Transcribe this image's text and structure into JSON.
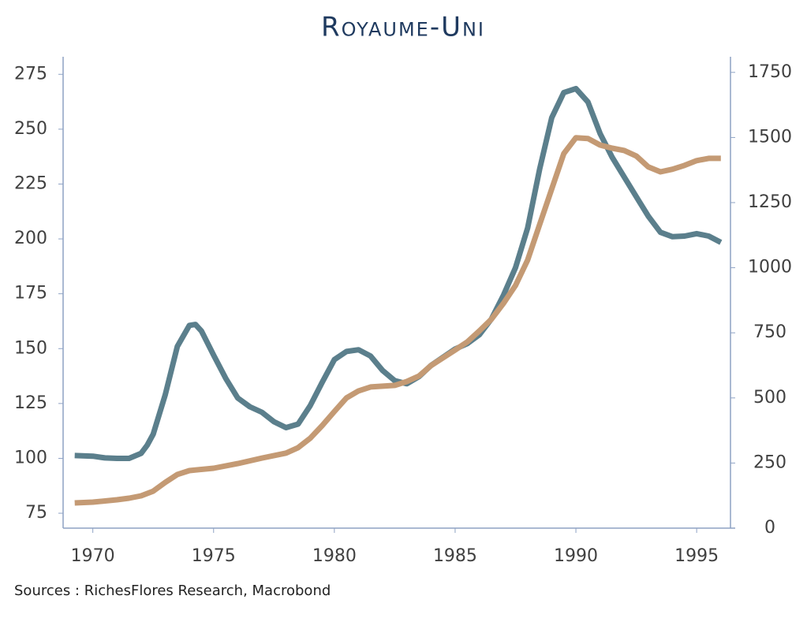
{
  "chart_data": {
    "type": "line",
    "title": "Royaume-Uni",
    "source": "Sources : RichesFlores Research, Macrobond",
    "xlim": [
      1968.77,
      1996.4
    ],
    "xticks": [
      1970,
      1975,
      1980,
      1985,
      1990,
      1995
    ],
    "ylim": [
      68.2,
      283
    ],
    "yticks": [
      75,
      100,
      125,
      150,
      175,
      200,
      225,
      250,
      275
    ],
    "y2lim": [
      0,
      1810
    ],
    "y2ticks": [
      0,
      250,
      500,
      750,
      1000,
      1250,
      1500,
      1750
    ],
    "series": [
      {
        "color": "#5b7f8c",
        "axis": "y",
        "x": [
          1969.25,
          1970,
          1970.5,
          1971,
          1971.5,
          1972,
          1972.25,
          1972.5,
          1973,
          1973.5,
          1974,
          1974.25,
          1974.5,
          1975,
          1975.5,
          1976,
          1976.5,
          1977,
          1977.5,
          1978,
          1978.5,
          1979,
          1979.5,
          1980,
          1980.5,
          1981,
          1981.5,
          1982,
          1982.5,
          1983,
          1983.5,
          1984,
          1985,
          1985.5,
          1986,
          1986.5,
          1987,
          1987.5,
          1988,
          1988.5,
          1989,
          1989.5,
          1990,
          1990.5,
          1991,
          1991.5,
          1992,
          1992.5,
          1993,
          1993.5,
          1994,
          1994.5,
          1995,
          1995.5,
          1996
        ],
        "values": [
          101.3,
          101,
          100.2,
          100,
          100,
          102.3,
          106,
          111,
          129,
          151,
          160.6,
          161,
          158,
          147,
          136.5,
          127.5,
          123.5,
          121,
          116.7,
          114,
          115.6,
          124,
          134.7,
          145,
          148.7,
          149.5,
          146.6,
          140,
          135.4,
          134,
          137.2,
          142.3,
          149.8,
          152.3,
          156.3,
          163.5,
          174.3,
          186.9,
          204.9,
          231.8,
          255.2,
          266.7,
          268.5,
          262.4,
          248,
          237.2,
          228.2,
          219.2,
          210.3,
          203,
          201,
          201.3,
          202.4,
          201.3,
          198.4
        ]
      },
      {
        "color": "#c49a74",
        "axis": "y2",
        "x": [
          1969.25,
          1970,
          1971,
          1971.5,
          1972,
          1972.5,
          1973,
          1973.5,
          1974,
          1975,
          1976,
          1977,
          1978,
          1978.5,
          1979,
          1979.5,
          1980,
          1980.5,
          1981,
          1981.5,
          1982,
          1982.5,
          1983,
          1983.5,
          1984,
          1985,
          1985.5,
          1986,
          1986.5,
          1987,
          1987.5,
          1988,
          1988.5,
          1989,
          1989.5,
          1990,
          1990.5,
          1991,
          1991.5,
          1992,
          1992.5,
          1993,
          1993.5,
          1994,
          1994.5,
          1995,
          1995.5,
          1996
        ],
        "values": [
          97,
          100,
          109,
          115,
          124,
          142,
          176,
          206,
          221,
          230,
          248,
          269,
          288,
          309,
          345,
          394,
          448,
          500,
          527,
          542,
          545,
          548,
          563,
          584,
          624,
          684,
          715,
          757,
          802,
          863,
          932,
          1029,
          1166,
          1302,
          1438,
          1499,
          1496,
          1471,
          1459,
          1450,
          1429,
          1387,
          1368,
          1378,
          1393,
          1411,
          1420,
          1420
        ]
      }
    ]
  }
}
